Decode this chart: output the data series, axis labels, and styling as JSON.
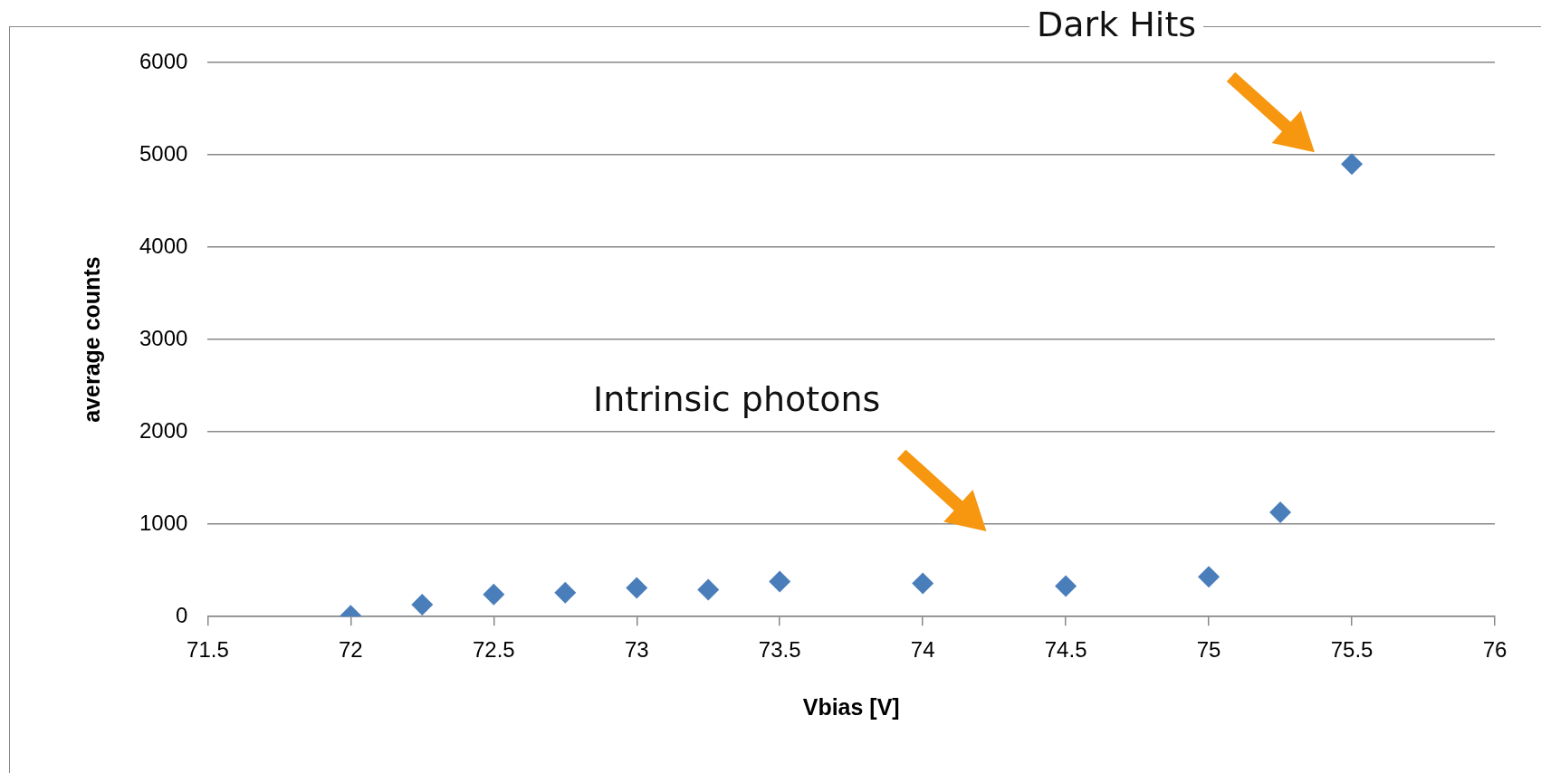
{
  "chart_data": {
    "type": "scatter",
    "x": [
      72,
      72.25,
      72.5,
      72.75,
      73,
      73.25,
      73.5,
      74,
      74.5,
      75,
      75.25,
      75.5
    ],
    "values": [
      10,
      130,
      240,
      260,
      310,
      290,
      380,
      360,
      330,
      430,
      1130,
      4900
    ],
    "color": "#4a7ebb",
    "marker": "diamond",
    "xlabel": "Vbias [V]",
    "ylabel": "average counts",
    "xlim": [
      71.5,
      76
    ],
    "xticks": [
      71.5,
      72,
      72.5,
      73,
      73.5,
      74,
      74.5,
      75,
      75.5,
      76
    ],
    "ylim": [
      0,
      6000
    ],
    "yticks": [
      0,
      1000,
      2000,
      3000,
      4000,
      5000,
      6000
    ],
    "grid": "y",
    "legend": false,
    "annotations": [
      "Dark Hits",
      "Intrinsic photons"
    ]
  }
}
